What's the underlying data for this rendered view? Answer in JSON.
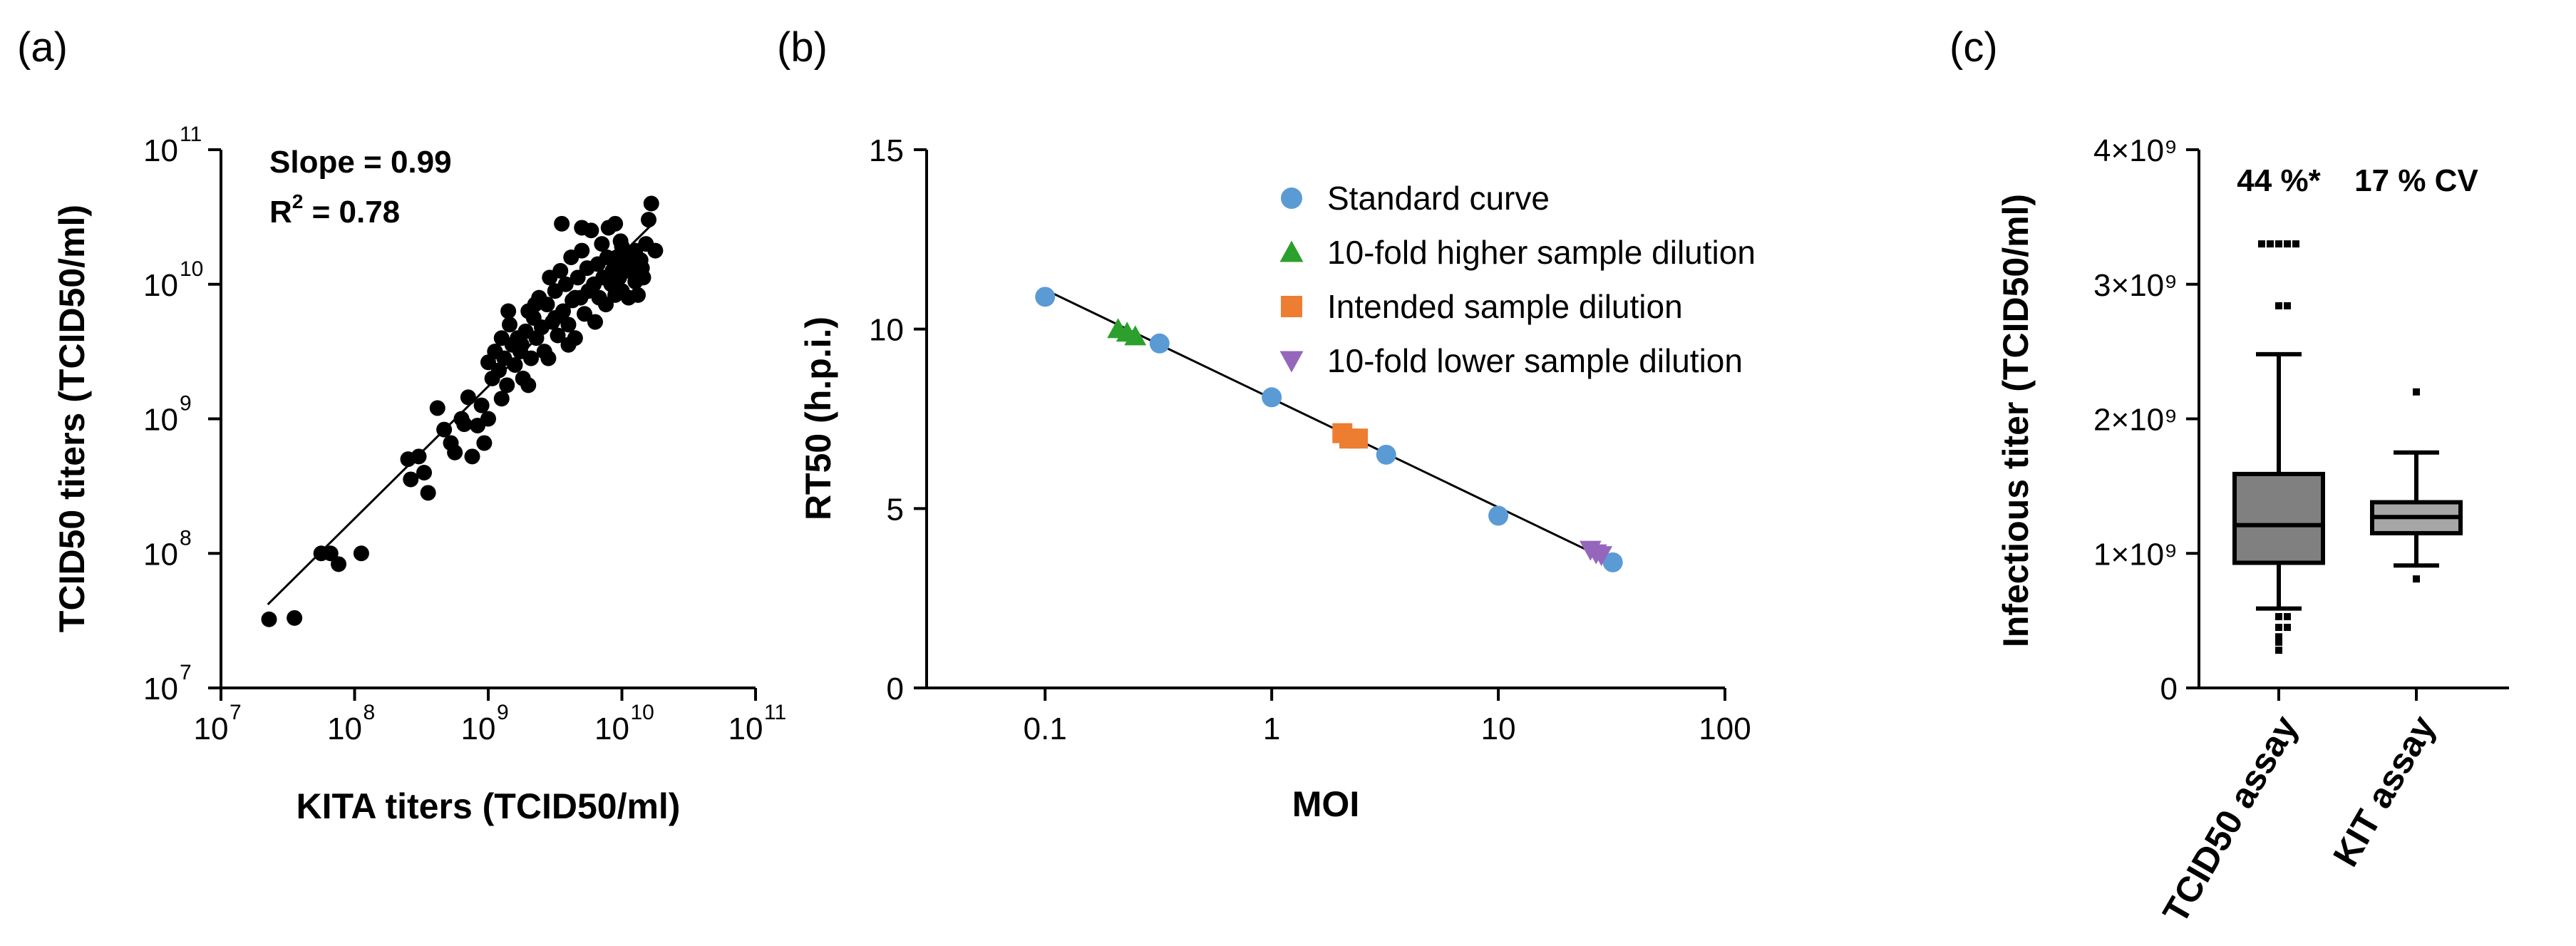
{
  "panels": {
    "a_label": "(a)",
    "b_label": "(b)",
    "c_label": "(c)"
  },
  "colors": {
    "standard": "#5b9bd5",
    "higher": "#2ca02c",
    "intended": "#ed7d31",
    "lower": "#9467bd",
    "box_fill": "#808080",
    "box_fill_light": "#a6a6a6"
  },
  "chart_data": [
    {
      "id": "a",
      "type": "scatter",
      "title": "",
      "xlabel": "KITA titers (TCID50/ml)",
      "ylabel": "TCID50 titers (TCID50/ml)",
      "x_scale": "log10",
      "y_scale": "log10",
      "xlim_exp": [
        7,
        11
      ],
      "ylim_exp": [
        7,
        11
      ],
      "tick_exps": [
        7,
        8,
        9,
        10,
        11
      ],
      "tick_base": "10",
      "annotation_slope": "Slope = 0.99",
      "annotation_r2_prefix": "R",
      "annotation_r2_sup": "2",
      "annotation_r2_suffix": " = 0.78",
      "fit_line_log": [
        [
          7.35,
          7.62
        ],
        [
          10.25,
          10.47
        ]
      ],
      "points_log": [
        [
          7.36,
          7.51
        ],
        [
          7.55,
          7.52
        ],
        [
          7.75,
          8.0
        ],
        [
          7.82,
          8.0
        ],
        [
          7.88,
          7.92
        ],
        [
          8.05,
          8.0
        ],
        [
          8.4,
          8.7
        ],
        [
          8.42,
          8.55
        ],
        [
          8.48,
          8.72
        ],
        [
          8.52,
          8.6
        ],
        [
          8.55,
          8.45
        ],
        [
          8.62,
          9.08
        ],
        [
          8.67,
          8.92
        ],
        [
          8.72,
          8.82
        ],
        [
          8.75,
          8.75
        ],
        [
          8.8,
          9.0
        ],
        [
          8.82,
          8.96
        ],
        [
          8.85,
          9.16
        ],
        [
          8.88,
          8.72
        ],
        [
          8.92,
          8.95
        ],
        [
          8.95,
          9.1
        ],
        [
          8.97,
          8.82
        ],
        [
          9.0,
          9.0
        ],
        [
          9.0,
          9.42
        ],
        [
          9.03,
          9.3
        ],
        [
          9.05,
          9.5
        ],
        [
          9.08,
          9.36
        ],
        [
          9.1,
          9.6
        ],
        [
          9.12,
          9.45
        ],
        [
          9.14,
          9.25
        ],
        [
          9.16,
          9.7
        ],
        [
          9.18,
          9.55
        ],
        [
          9.2,
          9.4
        ],
        [
          9.22,
          9.6
        ],
        [
          9.24,
          9.5
        ],
        [
          9.26,
          9.3
        ],
        [
          9.28,
          9.65
        ],
        [
          9.3,
          9.8
        ],
        [
          9.32,
          9.45
        ],
        [
          9.34,
          9.75
        ],
        [
          9.36,
          9.6
        ],
        [
          9.38,
          9.9
        ],
        [
          9.4,
          9.68
        ],
        [
          9.42,
          9.5
        ],
        [
          9.44,
          9.85
        ],
        [
          9.46,
          10.05
        ],
        [
          9.48,
          9.72
        ],
        [
          9.5,
          9.95
        ],
        [
          9.52,
          9.62
        ],
        [
          9.54,
          10.1
        ],
        [
          9.56,
          9.8
        ],
        [
          9.58,
          10.0
        ],
        [
          9.6,
          9.7
        ],
        [
          9.62,
          10.2
        ],
        [
          9.63,
          9.88
        ],
        [
          9.65,
          9.6
        ],
        [
          9.67,
          10.05
        ],
        [
          9.69,
          9.9
        ],
        [
          9.7,
          10.25
        ],
        [
          9.72,
          9.78
        ],
        [
          9.74,
          10.12
        ],
        [
          9.75,
          9.95
        ],
        [
          9.77,
          10.4
        ],
        [
          9.79,
          10.0
        ],
        [
          9.8,
          9.72
        ],
        [
          9.82,
          10.15
        ],
        [
          9.83,
          9.9
        ],
        [
          9.85,
          10.3
        ],
        [
          9.86,
          10.05
        ],
        [
          9.88,
          9.85
        ],
        [
          9.89,
          10.2
        ],
        [
          9.9,
          10.42
        ],
        [
          9.92,
          10.0
        ],
        [
          9.93,
          10.1
        ],
        [
          9.95,
          9.92
        ],
        [
          9.96,
          10.2
        ],
        [
          9.98,
          10.05
        ],
        [
          9.99,
          10.32
        ],
        [
          10.0,
          9.95
        ],
        [
          10.02,
          10.15
        ],
        [
          10.03,
          10.1
        ],
        [
          10.05,
          9.9
        ],
        [
          10.06,
          10.22
        ],
        [
          10.08,
          10.12
        ],
        [
          10.1,
          10.25
        ],
        [
          10.12,
          9.92
        ],
        [
          10.14,
          10.18
        ],
        [
          10.16,
          10.05
        ],
        [
          10.18,
          10.3
        ],
        [
          10.2,
          10.48
        ],
        [
          10.22,
          10.6
        ],
        [
          10.25,
          10.25
        ],
        [
          9.55,
          10.45
        ],
        [
          9.7,
          10.42
        ],
        [
          9.35,
          9.85
        ],
        [
          9.25,
          9.55
        ],
        [
          9.1,
          9.15
        ],
        [
          9.05,
          9.5
        ],
        [
          9.45,
          9.45
        ],
        [
          9.6,
          9.55
        ],
        [
          10.15,
          10.12
        ],
        [
          10.1,
          10.02
        ],
        [
          9.95,
          10.45
        ],
        [
          9.15,
          9.8
        ],
        [
          9.3,
          9.25
        ],
        [
          9.5,
          9.75
        ],
        [
          9.65,
          9.9
        ],
        [
          10.0,
          10.28
        ]
      ]
    },
    {
      "id": "b",
      "type": "scatter",
      "title": "",
      "xlabel": "MOI",
      "ylabel": "RT50 (h.p.i.)",
      "x_scale": "log10",
      "xlim": [
        0.03,
        100
      ],
      "ylim": [
        0,
        15
      ],
      "x_ticks": [
        0.1,
        1,
        10,
        100
      ],
      "x_tick_labels": [
        "0.1",
        "1",
        "10",
        "100"
      ],
      "y_ticks": [
        0,
        5,
        10,
        15
      ],
      "y_tick_labels": [
        "0",
        "5",
        "10",
        "15"
      ],
      "fit_line": [
        [
          0.1,
          11.1
        ],
        [
          32,
          3.5
        ]
      ],
      "legend_position": "top-right",
      "series": [
        {
          "name": "Standard curve",
          "marker": "circle",
          "points": [
            [
              0.1,
              10.9
            ],
            [
              0.32,
              9.6
            ],
            [
              1.0,
              8.1
            ],
            [
              3.2,
              6.5
            ],
            [
              10.0,
              4.8
            ],
            [
              32.0,
              3.5
            ]
          ]
        },
        {
          "name": "10-fold higher sample dilution",
          "marker": "triangle-up",
          "points": [
            [
              0.21,
              10.0
            ],
            [
              0.23,
              9.9
            ],
            [
              0.25,
              9.8
            ]
          ]
        },
        {
          "name": "Intended sample dilution",
          "marker": "square",
          "points": [
            [
              2.05,
              7.1
            ],
            [
              2.2,
              6.95
            ],
            [
              2.4,
              6.95
            ]
          ]
        },
        {
          "name": "10-fold lower sample dilution",
          "marker": "triangle-down",
          "points": [
            [
              25.5,
              3.85
            ],
            [
              27.0,
              3.75
            ],
            [
              28.5,
              3.7
            ]
          ]
        }
      ]
    },
    {
      "id": "c",
      "type": "box",
      "title": "",
      "xlabel": "",
      "ylabel": "Infectious titer (TCID50/ml)",
      "ylim": [
        0,
        4000000000
      ],
      "y_ticks": [
        0,
        1000000000,
        2000000000,
        3000000000,
        4000000000
      ],
      "y_tick_labels": [
        "0",
        "1×10⁹",
        "2×10⁹",
        "3×10⁹",
        "4×10⁹"
      ],
      "categories": [
        "TCID50 assay",
        "KIT assay"
      ],
      "annotations": [
        "44 %*",
        "17 % CV"
      ],
      "boxes": [
        {
          "name": "TCID50 assay",
          "q1": 930000000,
          "median": 1210000000,
          "q3": 1590000000,
          "whisker_low": 590000000,
          "whisker_high": 2480000000,
          "outliers": [
            3300000000,
            3300000000,
            3300000000,
            3300000000,
            3300000000,
            2840000000,
            2840000000,
            530000000,
            530000000,
            450000000,
            450000000,
            380000000,
            340000000,
            280000000
          ]
        },
        {
          "name": "KIT assay",
          "q1": 1150000000,
          "median": 1270000000,
          "q3": 1380000000,
          "whisker_low": 910000000,
          "whisker_high": 1750000000,
          "outliers": [
            2200000000,
            810000000
          ]
        }
      ]
    }
  ]
}
